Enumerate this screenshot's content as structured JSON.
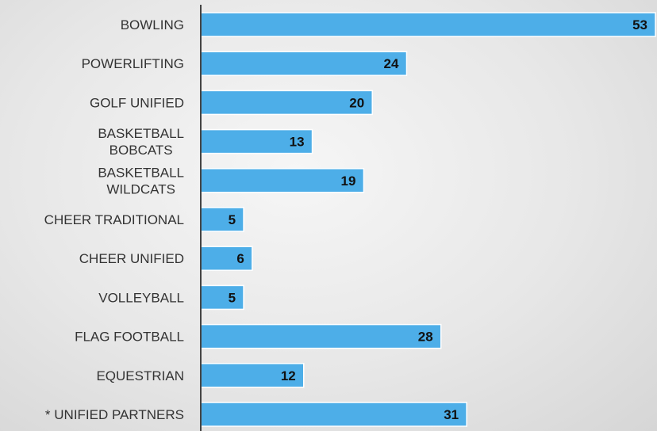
{
  "chart_data": {
    "type": "bar",
    "orientation": "horizontal",
    "categories": [
      "BOWLING",
      "POWERLIFTING",
      "GOLF UNIFIED",
      "BASKETBALL BOBCATS",
      "BASKETBALL WILDCATS",
      "CHEER TRADITIONAL",
      "CHEER UNIFIED",
      "VOLLEYBALL",
      "FLAG FOOTBALL",
      "EQUESTRIAN",
      "* UNIFIED PARTNERS"
    ],
    "category_lines": [
      [
        "BOWLING"
      ],
      [
        "POWERLIFTING"
      ],
      [
        "GOLF UNIFIED"
      ],
      [
        "BASKETBALL",
        "BOBCATS"
      ],
      [
        "BASKETBALL",
        "WILDCATS"
      ],
      [
        "CHEER TRADITIONAL"
      ],
      [
        "CHEER UNIFIED"
      ],
      [
        "VOLLEYBALL"
      ],
      [
        "FLAG FOOTBALL"
      ],
      [
        "EQUESTRIAN"
      ],
      [
        "* UNIFIED PARTNERS"
      ]
    ],
    "values": [
      53,
      24,
      20,
      13,
      19,
      5,
      6,
      5,
      28,
      12,
      31
    ],
    "xlim": [
      0,
      53
    ],
    "grid": false,
    "data_labels": true,
    "title": "",
    "xlabel": "",
    "ylabel": "",
    "bar_color": "#4daee8",
    "bar_edge_color": "#ffffff",
    "axis_color": "#444444"
  }
}
